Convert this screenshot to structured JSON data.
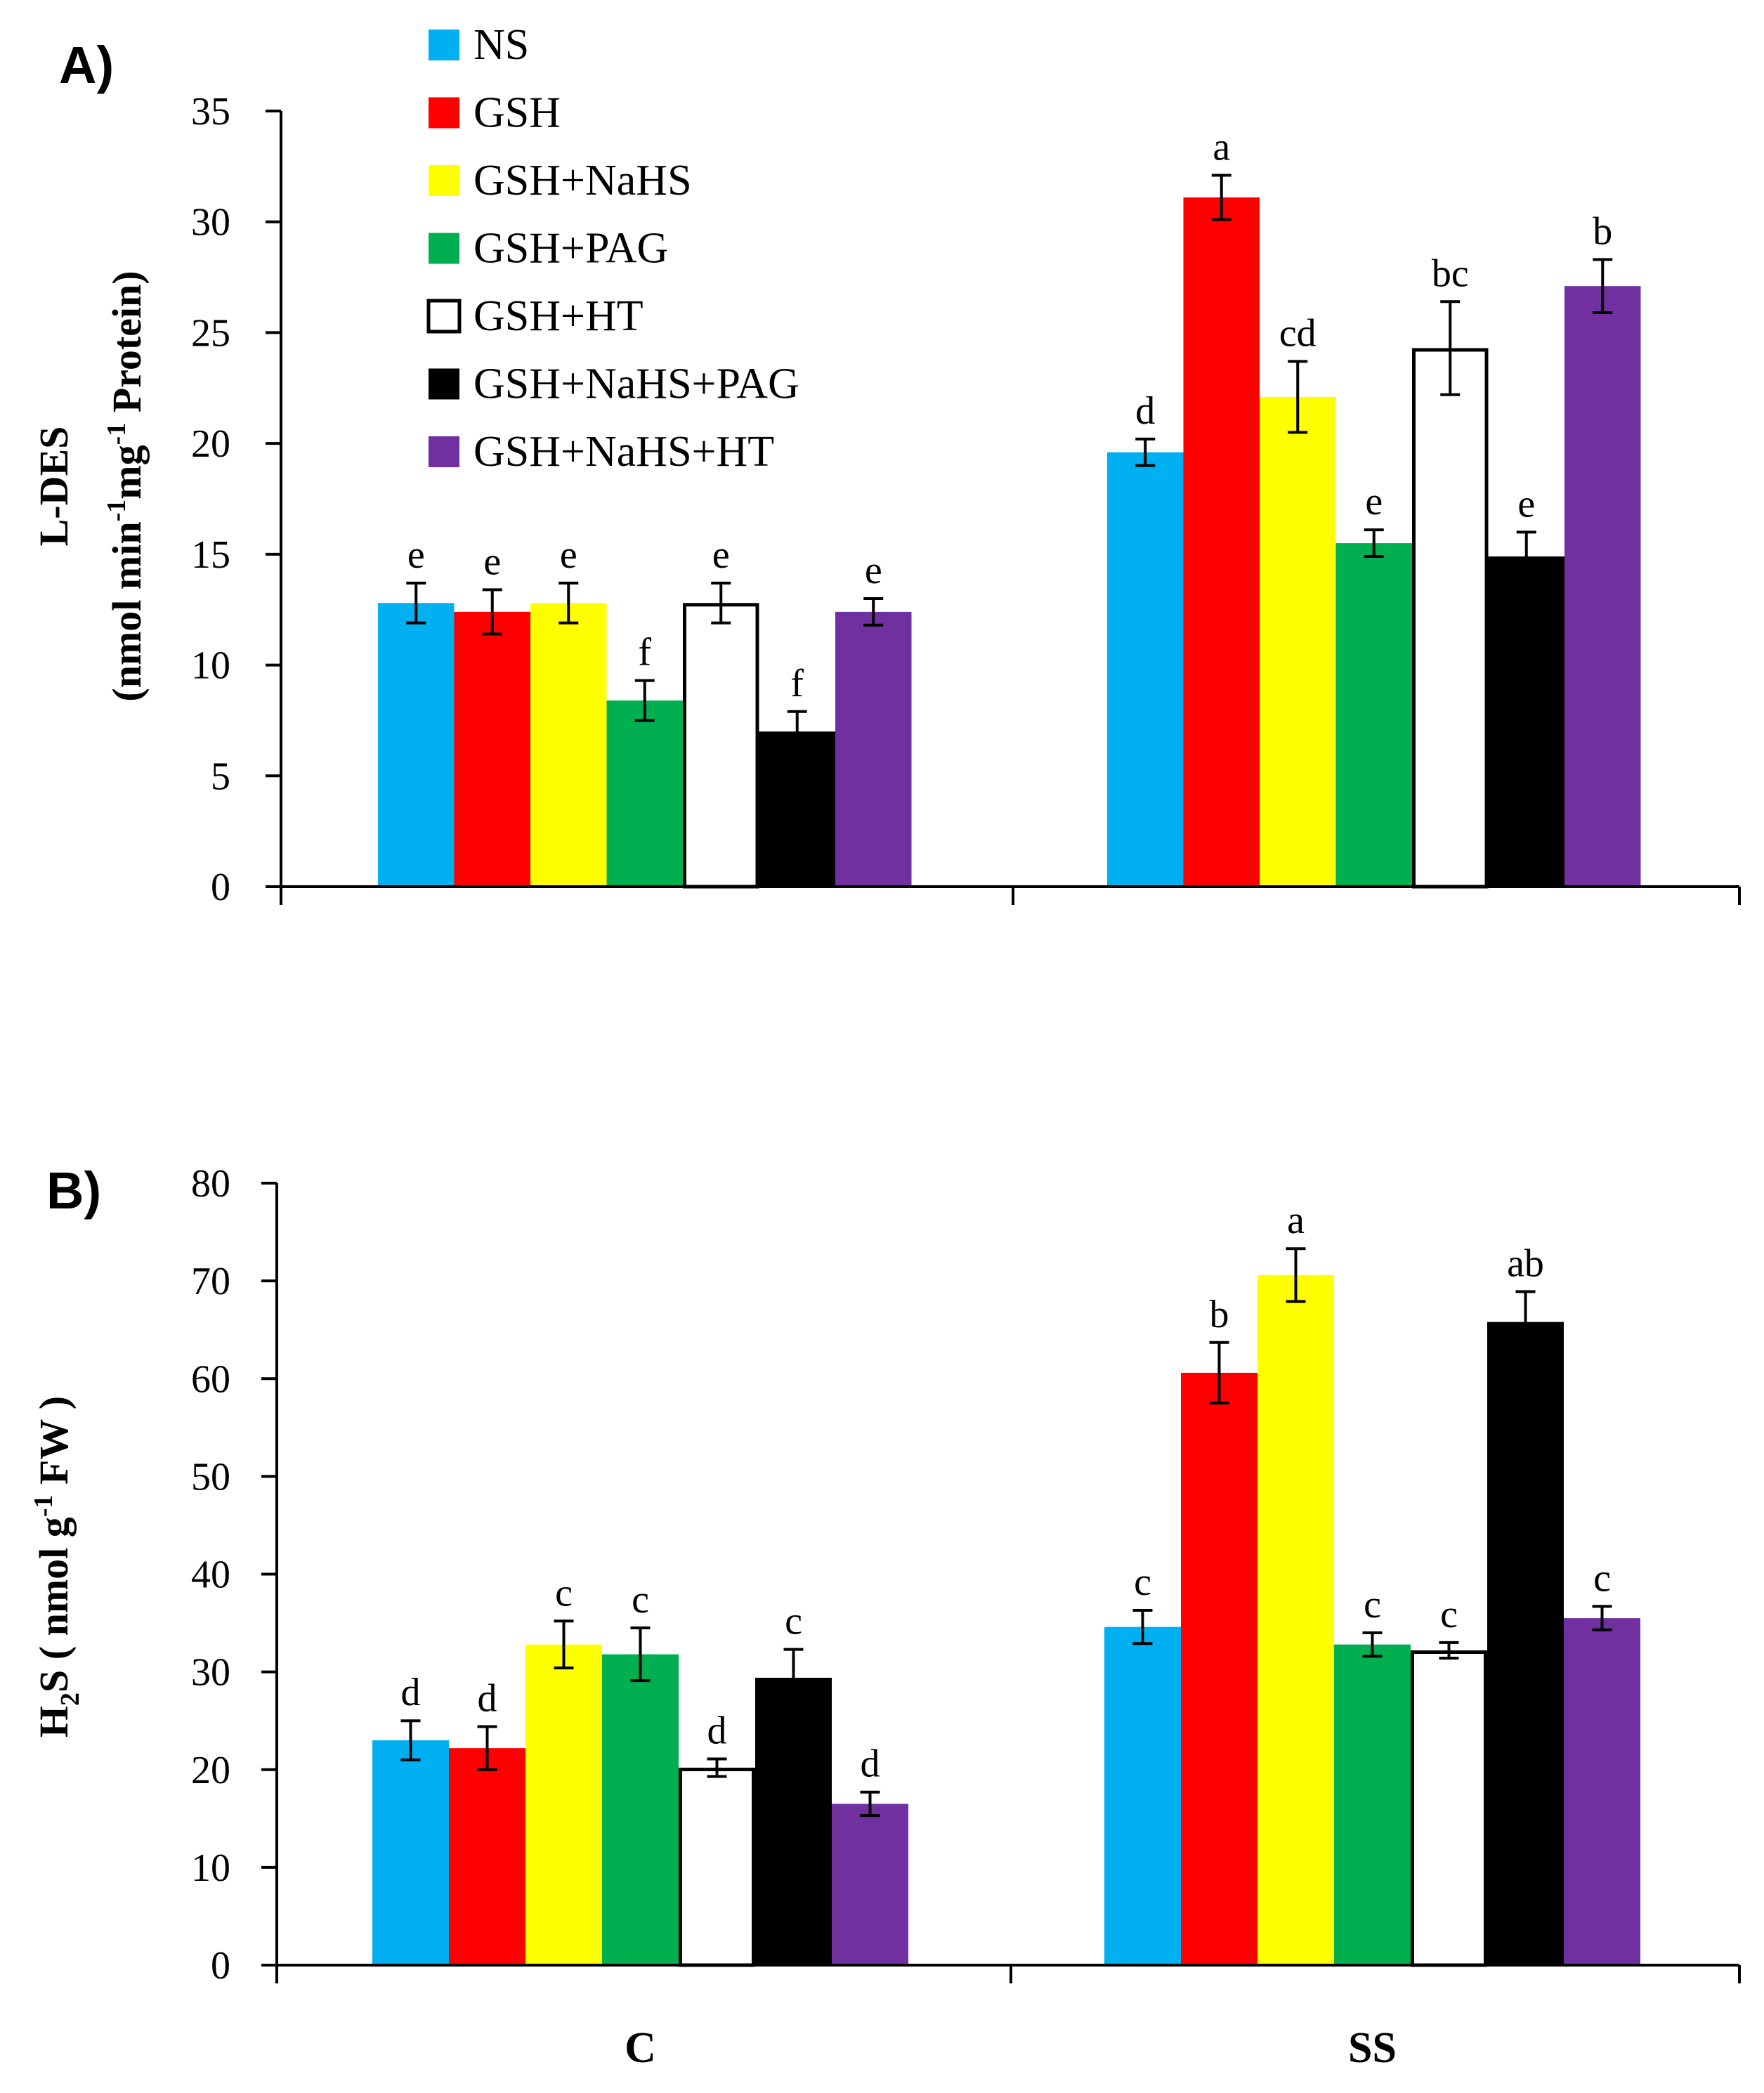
{
  "figure": {
    "legend": [
      {
        "name": "NS",
        "color": "#00b0f0"
      },
      {
        "name": "GSH",
        "color": "#ff0000"
      },
      {
        "name": "GSH+NaHS",
        "color": "#ffff00"
      },
      {
        "name": "GSH+PAG",
        "color": "#00b050"
      },
      {
        "name": "GSH+HT",
        "color": "#ffffff"
      },
      {
        "name": "GSH+NaHS+PAG",
        "color": "#000000"
      },
      {
        "name": "GSH+NaHS+HT",
        "color": "#7030a0"
      }
    ]
  },
  "chart_data": [
    {
      "type": "bar",
      "panel_label": "A)",
      "ylabel_line1": "L-DES",
      "ylabel_line2": {
        "p1": "(nmol min",
        "s1": "-1",
        "p2": "mg",
        "s2": "-1",
        "p3": " Protein)"
      },
      "categories": [
        "C",
        "SS"
      ],
      "show_xlabels": false,
      "ylim": [
        0,
        35
      ],
      "yticks": [
        0,
        5,
        10,
        15,
        20,
        25,
        30,
        35
      ],
      "series": [
        {
          "name": "NS",
          "values": [
            12.8,
            19.6
          ],
          "errors": [
            0.9,
            0.6
          ],
          "letters": [
            "e",
            "d"
          ]
        },
        {
          "name": "GSH",
          "values": [
            12.4,
            31.1
          ],
          "errors": [
            1.0,
            1.0
          ],
          "letters": [
            "e",
            "a"
          ]
        },
        {
          "name": "GSH+NaHS",
          "values": [
            12.8,
            22.1
          ],
          "errors": [
            0.9,
            1.6
          ],
          "letters": [
            "e",
            "cd"
          ]
        },
        {
          "name": "GSH+PAG",
          "values": [
            8.4,
            15.5
          ],
          "errors": [
            0.9,
            0.6
          ],
          "letters": [
            "f",
            "e"
          ]
        },
        {
          "name": "GSH+HT",
          "values": [
            12.8,
            24.3
          ],
          "errors": [
            0.9,
            2.1
          ],
          "letters": [
            "e",
            "bc"
          ]
        },
        {
          "name": "GSH+NaHS+PAG",
          "values": [
            7.0,
            14.9
          ],
          "errors": [
            0.9,
            1.1
          ],
          "letters": [
            "f",
            "e"
          ]
        },
        {
          "name": "GSH+NaHS+HT",
          "values": [
            12.4,
            27.1
          ],
          "errors": [
            0.6,
            1.2
          ],
          "letters": [
            "e",
            "b"
          ]
        }
      ]
    },
    {
      "type": "bar",
      "panel_label": "B)",
      "ylabel": {
        "p1": "H",
        "sub": "2",
        "p2": "S ( nmol g",
        "sup": "-1",
        "p3": " FW )"
      },
      "categories": [
        "C",
        "SS"
      ],
      "show_xlabels": true,
      "ylim": [
        0,
        80
      ],
      "yticks": [
        0,
        10,
        20,
        30,
        40,
        50,
        60,
        70,
        80
      ],
      "series": [
        {
          "name": "NS",
          "values": [
            23.0,
            34.6
          ],
          "errors": [
            2.0,
            1.7
          ],
          "letters": [
            "d",
            "c"
          ]
        },
        {
          "name": "GSH",
          "values": [
            22.2,
            60.6
          ],
          "errors": [
            2.2,
            3.1
          ],
          "letters": [
            "d",
            "b"
          ]
        },
        {
          "name": "GSH+NaHS",
          "values": [
            32.8,
            70.6
          ],
          "errors": [
            2.4,
            2.7
          ],
          "letters": [
            "c",
            "a"
          ]
        },
        {
          "name": "GSH+PAG",
          "values": [
            31.8,
            32.8
          ],
          "errors": [
            2.7,
            1.2
          ],
          "letters": [
            "c",
            "c"
          ]
        },
        {
          "name": "GSH+HT",
          "values": [
            20.2,
            32.2
          ],
          "errors": [
            0.9,
            0.8
          ],
          "letters": [
            "d",
            "c"
          ]
        },
        {
          "name": "GSH+NaHS+PAG",
          "values": [
            29.4,
            65.8
          ],
          "errors": [
            2.9,
            3.1
          ],
          "letters": [
            "c",
            "ab"
          ]
        },
        {
          "name": "GSH+NaHS+HT",
          "values": [
            16.5,
            35.5
          ],
          "errors": [
            1.2,
            1.2
          ],
          "letters": [
            "d",
            "c"
          ]
        }
      ]
    }
  ]
}
